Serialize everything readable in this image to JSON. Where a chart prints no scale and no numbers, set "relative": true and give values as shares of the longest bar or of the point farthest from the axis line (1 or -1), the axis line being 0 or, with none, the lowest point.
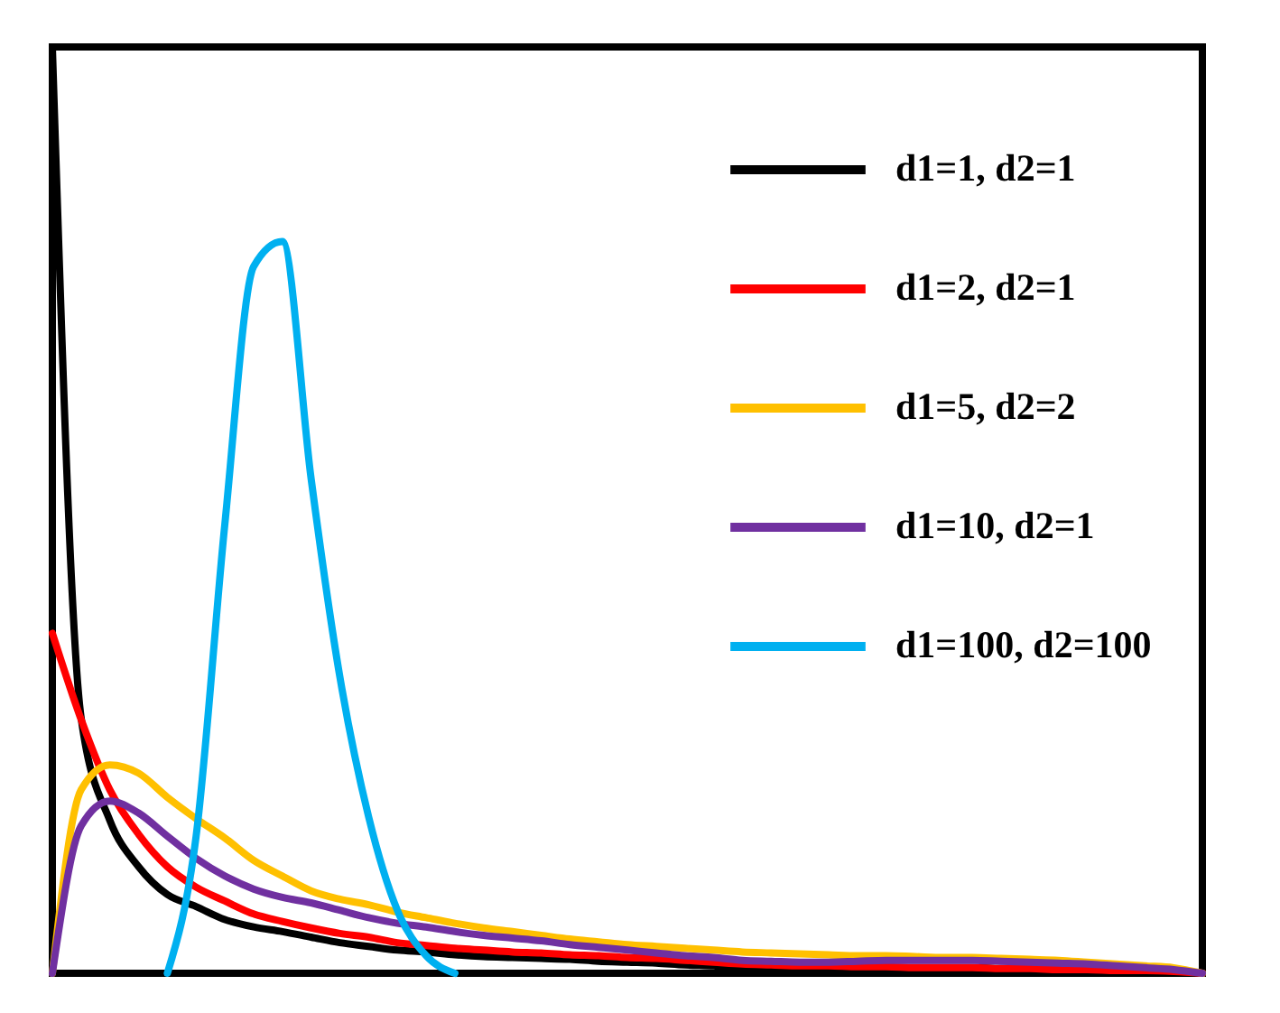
{
  "chart_data": {
    "type": "line",
    "relative": true,
    "legend": "top right",
    "line_style": "solid",
    "marker": "none",
    "categories": [
      null,
      null,
      null,
      null,
      null,
      null,
      null,
      null,
      null,
      null,
      null,
      null,
      null,
      null,
      null,
      null,
      null,
      null,
      null,
      null,
      null,
      null,
      null,
      null,
      null,
      null,
      null,
      null,
      null,
      null,
      null,
      null,
      null,
      null,
      null,
      null,
      null,
      null,
      null,
      null,
      null
    ],
    "series": [
      {
        "name": "d1=1, d2=1",
        "color": "#000000",
        "values": [
          1.0,
          0.276,
          0.165,
          0.115,
          0.085,
          0.072,
          0.058,
          0.05,
          0.045,
          0.039,
          0.033,
          0.029,
          0.025,
          0.023,
          0.02,
          0.018,
          0.017,
          0.016,
          0.015,
          0.013,
          0.012,
          0.011,
          0.009,
          0.008,
          0.006,
          0.006,
          0.006,
          0.006,
          0.006,
          0.006,
          0.006,
          0.006,
          0.006,
          0.005,
          0.005,
          0.004,
          0.004,
          0.003,
          0.003,
          0.002,
          0
        ]
      },
      {
        "name": "d1=2, d2=1",
        "color": "#ff0000",
        "values": [
          0.367,
          0.274,
          0.198,
          0.15,
          0.115,
          0.093,
          0.078,
          0.064,
          0.056,
          0.049,
          0.043,
          0.039,
          0.033,
          0.03,
          0.027,
          0.025,
          0.023,
          0.022,
          0.02,
          0.019,
          0.017,
          0.016,
          0.014,
          0.012,
          0.01,
          0.009,
          0.008,
          0.008,
          0.007,
          0.007,
          0.006,
          0.006,
          0.006,
          0.005,
          0.005,
          0.004,
          0.004,
          0.003,
          0.003,
          0.002,
          0
        ]
      },
      {
        "name": "d1=5, d2=2",
        "color": "#ffc000",
        "values": [
          0,
          0.198,
          0.225,
          0.216,
          0.19,
          0.167,
          0.146,
          0.122,
          0.105,
          0.089,
          0.08,
          0.074,
          0.066,
          0.06,
          0.054,
          0.049,
          0.045,
          0.041,
          0.037,
          0.034,
          0.031,
          0.029,
          0.027,
          0.025,
          0.023,
          0.022,
          0.021,
          0.02,
          0.019,
          0.019,
          0.018,
          0.017,
          0.017,
          0.016,
          0.015,
          0.014,
          0.012,
          0.01,
          0.008,
          0.006,
          0
        ]
      },
      {
        "name": "d1=10, d2=1",
        "color": "#7030a0",
        "values": [
          0,
          0.159,
          0.186,
          0.173,
          0.148,
          0.124,
          0.105,
          0.091,
          0.082,
          0.076,
          0.068,
          0.06,
          0.054,
          0.05,
          0.045,
          0.041,
          0.038,
          0.035,
          0.031,
          0.028,
          0.025,
          0.022,
          0.019,
          0.017,
          0.014,
          0.013,
          0.012,
          0.012,
          0.013,
          0.014,
          0.014,
          0.014,
          0.014,
          0.013,
          0.012,
          0.011,
          0.01,
          0.008,
          0.006,
          0.004,
          0
        ]
      },
      {
        "name": "d1=100, d2=100",
        "color": "#00b0f0",
        "values": [
          null,
          null,
          null,
          null,
          0,
          0.148,
          0.485,
          0.763,
          0.79,
          0.534,
          0.32,
          0.169,
          0.068,
          0.019,
          0,
          null,
          null,
          null,
          null,
          null,
          null,
          null,
          null,
          null,
          null,
          null,
          null,
          null,
          null,
          null,
          null,
          null,
          null,
          null,
          null,
          null,
          null,
          null,
          null,
          null,
          null
        ]
      }
    ]
  }
}
